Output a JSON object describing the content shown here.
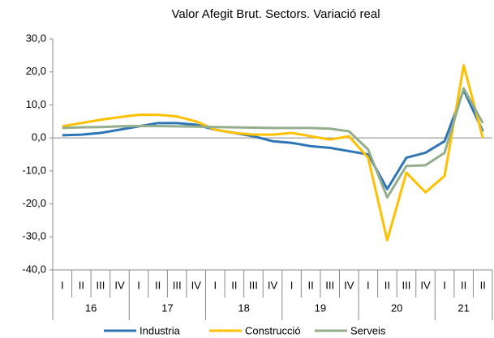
{
  "chart_data": {
    "type": "line",
    "title": "Valor Afegit Brut. Sectors. Variació real",
    "categories": [
      "I",
      "II",
      "III",
      "IV",
      "I",
      "II",
      "III",
      "IV",
      "I",
      "II",
      "III",
      "IV",
      "I",
      "II",
      "III",
      "IV",
      "I",
      "II",
      "III",
      "IV",
      "I",
      "II",
      "II"
    ],
    "groups": [
      {
        "label": "16",
        "size": 4
      },
      {
        "label": "17",
        "size": 4
      },
      {
        "label": "18",
        "size": 4
      },
      {
        "label": "19",
        "size": 4
      },
      {
        "label": "20",
        "size": 4
      },
      {
        "label": "21",
        "size": 3
      }
    ],
    "series": [
      {
        "name": "Industria",
        "color": "#2e75b6",
        "values": [
          0.8,
          1.0,
          1.5,
          2.5,
          3.5,
          4.5,
          4.5,
          4.0,
          2.5,
          1.5,
          0.5,
          -1.0,
          -1.5,
          -2.5,
          -3.0,
          -4.0,
          -5.0,
          -15.5,
          -6.0,
          -4.5,
          -1.0,
          14.5,
          2.0
        ]
      },
      {
        "name": "Construcció",
        "color": "#ffc000",
        "values": [
          3.5,
          4.5,
          5.5,
          6.3,
          7.0,
          7.0,
          6.5,
          5.0,
          2.5,
          1.5,
          1.0,
          1.0,
          1.5,
          0.5,
          -0.5,
          0.5,
          -6.0,
          -31.0,
          -10.5,
          -16.5,
          -11.5,
          22.0,
          0.0
        ]
      },
      {
        "name": "Serveis",
        "color": "#93ad8d",
        "values": [
          3.0,
          3.2,
          3.3,
          3.5,
          3.6,
          3.6,
          3.5,
          3.4,
          3.3,
          3.2,
          3.1,
          3.0,
          3.0,
          3.0,
          2.8,
          2.0,
          -3.5,
          -18.0,
          -8.5,
          -8.3,
          -4.5,
          15.0,
          4.5
        ]
      }
    ],
    "ylim": [
      -40,
      30
    ],
    "yticks": [
      {
        "value": -40,
        "label": "-40,0"
      },
      {
        "value": -30,
        "label": "-30,0"
      },
      {
        "value": -20,
        "label": "-20,0"
      },
      {
        "value": -10,
        "label": "-10,0"
      },
      {
        "value": 0,
        "label": "0,0"
      },
      {
        "value": 10,
        "label": "10,0"
      },
      {
        "value": 20,
        "label": "20,0"
      },
      {
        "value": 30,
        "label": "30,0"
      }
    ],
    "legend": "bottom"
  }
}
